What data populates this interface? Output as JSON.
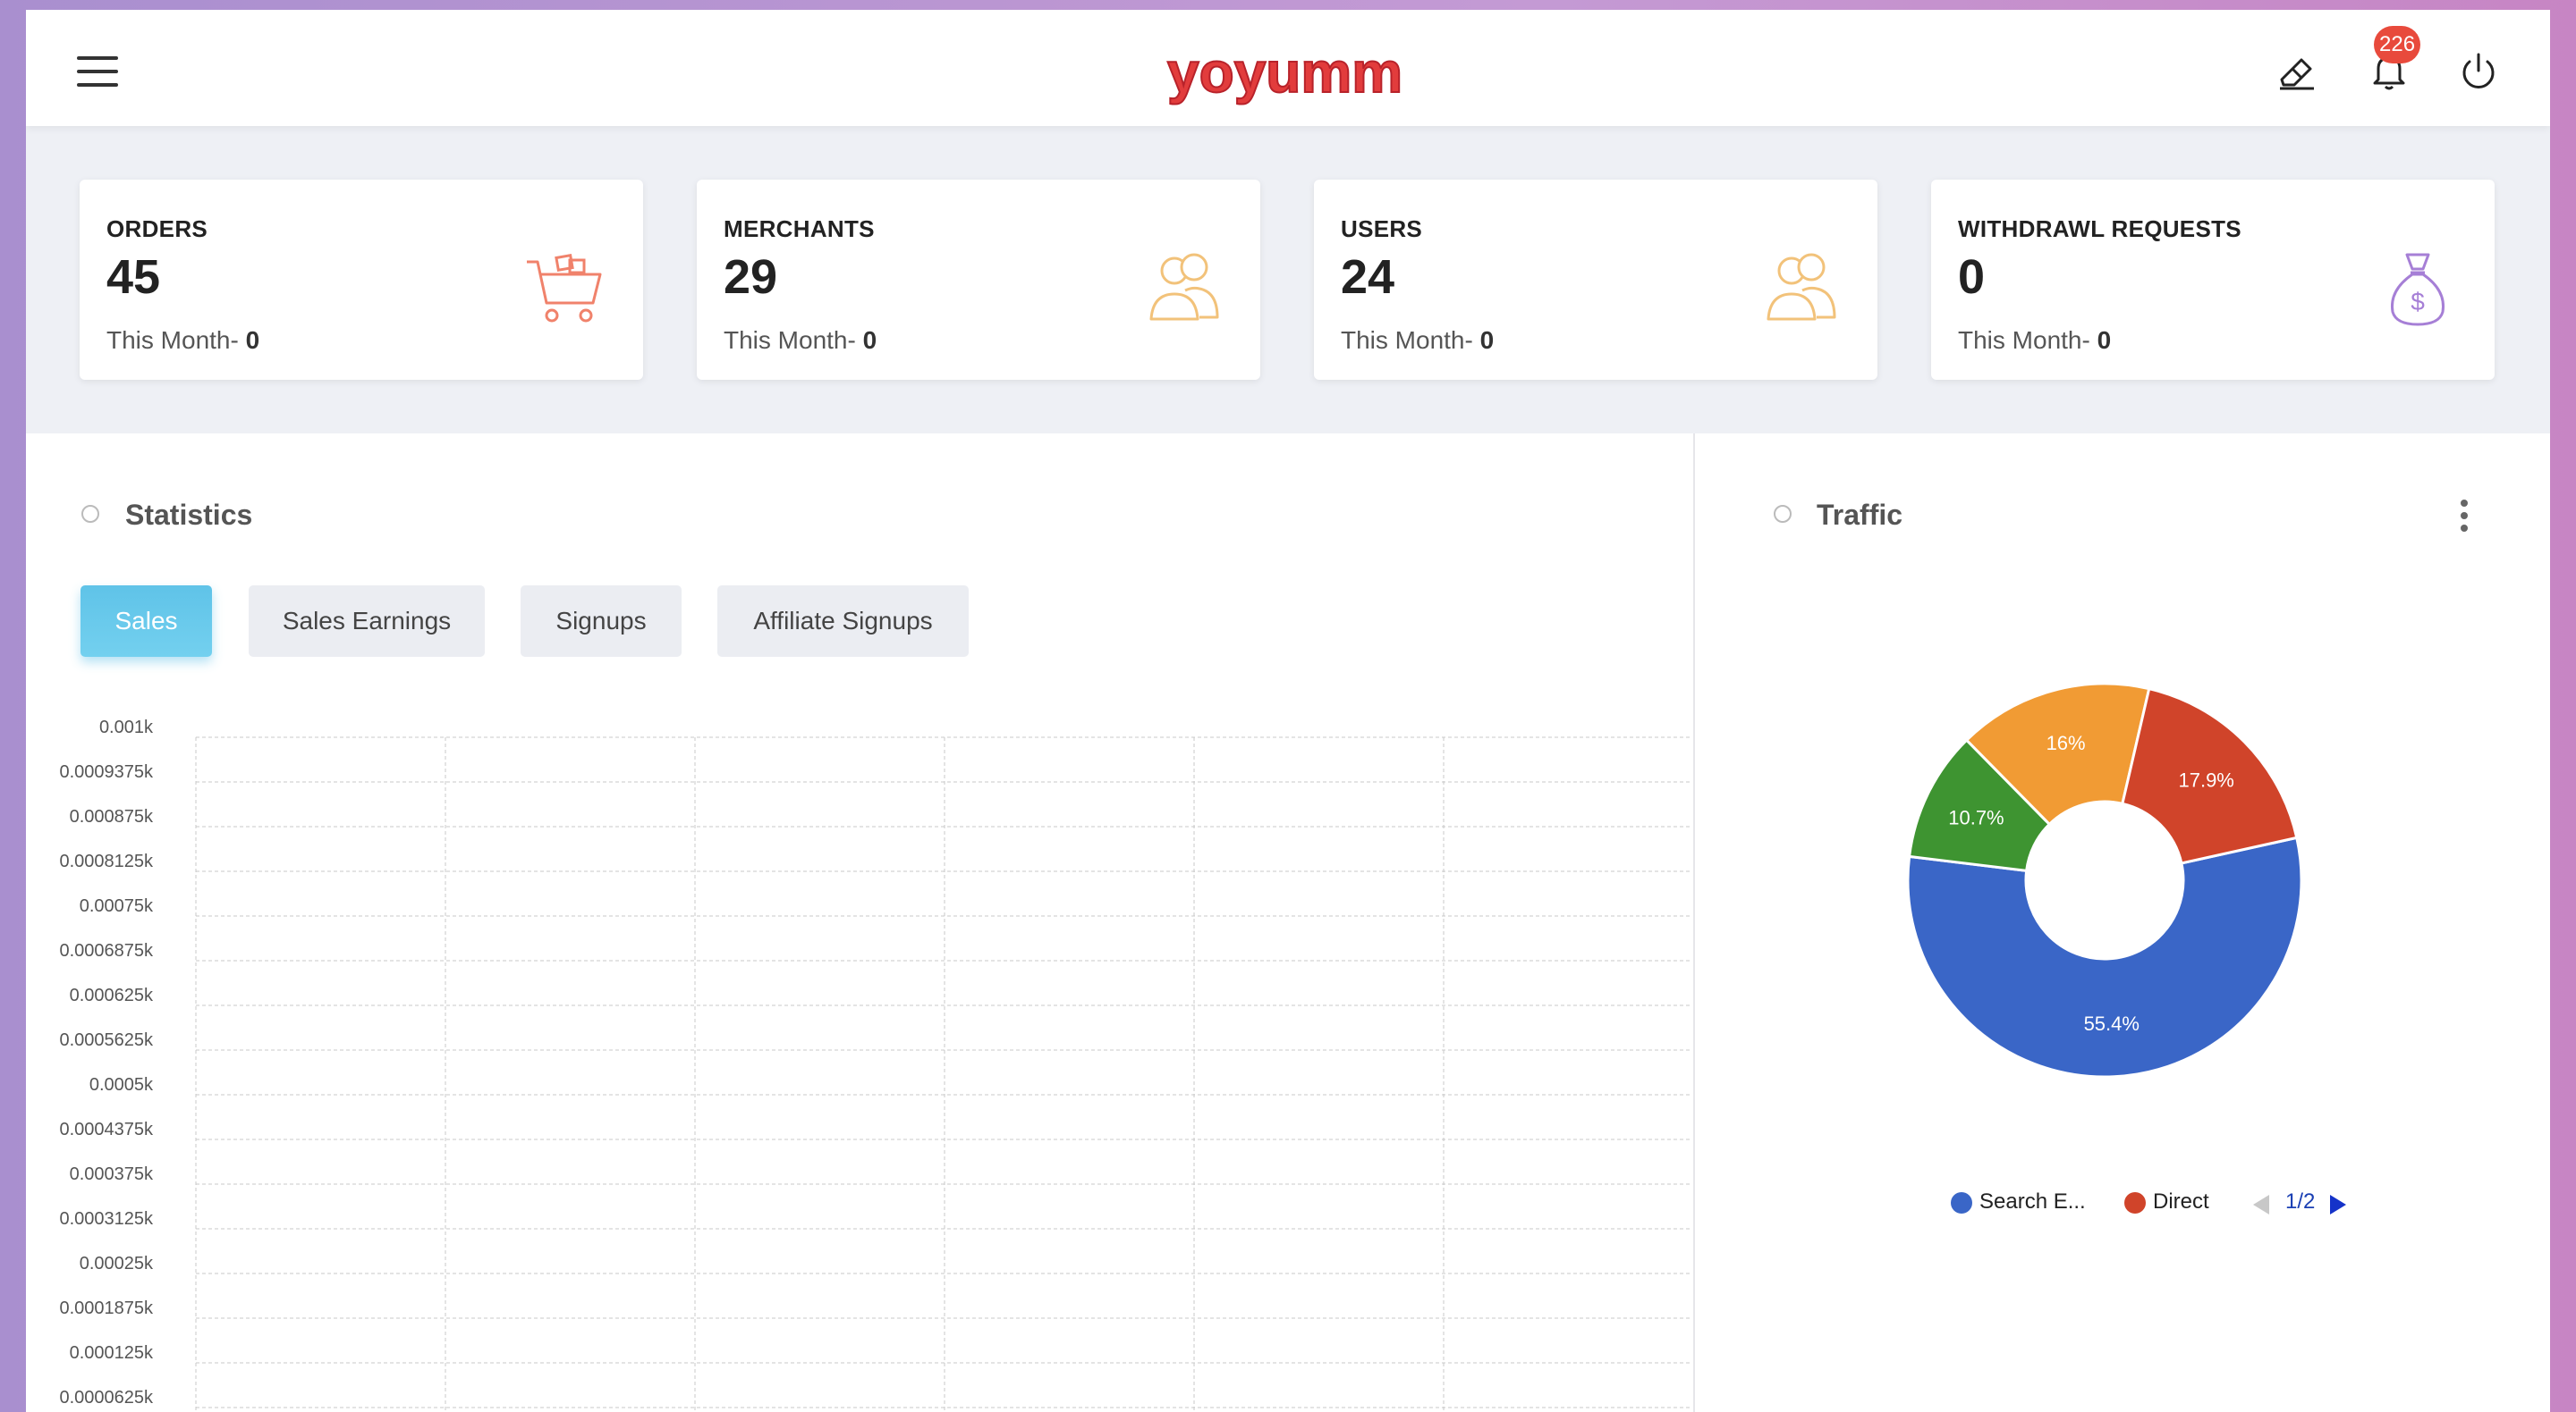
{
  "header": {
    "brand": "yoyumm",
    "notification_count": "226"
  },
  "stats": [
    {
      "title": "ORDERS",
      "value": "45",
      "sub_label": "This Month- ",
      "sub_value": "0",
      "icon": "cart-icon",
      "icon_color": "#f0826b"
    },
    {
      "title": "MERCHANTS",
      "value": "29",
      "sub_label": "This Month- ",
      "sub_value": "0",
      "icon": "users-icon",
      "icon_color": "#f2c27a"
    },
    {
      "title": "USERS",
      "value": "24",
      "sub_label": "This Month- ",
      "sub_value": "0",
      "icon": "users-icon",
      "icon_color": "#f2c27a"
    },
    {
      "title": "WITHDRAWL REQUESTS",
      "value": "0",
      "sub_label": "This Month- ",
      "sub_value": "0",
      "icon": "money-bag-icon",
      "icon_color": "#a67fd6"
    }
  ],
  "statistics": {
    "title": "Statistics",
    "tabs": [
      {
        "label": "Sales",
        "active": true
      },
      {
        "label": "Sales Earnings",
        "active": false
      },
      {
        "label": "Signups",
        "active": false
      },
      {
        "label": "Affiliate Signups",
        "active": false
      }
    ]
  },
  "traffic": {
    "title": "Traffic",
    "legend": [
      {
        "label": "Search E...",
        "color": "#3a66c7"
      },
      {
        "label": "Direct",
        "color": "#d0442a"
      }
    ],
    "page": "1/2"
  },
  "chart_data": [
    {
      "type": "line",
      "title": "",
      "y_tick_labels": [
        "0.001k",
        "0.0009375k",
        "0.000875k",
        "0.0008125k",
        "0.00075k",
        "0.0006875k",
        "0.000625k",
        "0.0005625k",
        "0.0005k",
        "0.0004375k",
        "0.000375k",
        "0.0003125k",
        "0.00025k",
        "0.0001875k",
        "0.000125k",
        "0.0000625k"
      ],
      "series": [],
      "grid": true
    },
    {
      "type": "pie",
      "title": "",
      "slices": [
        {
          "label": "Search E...",
          "value": 55.4,
          "display": "55.4%",
          "color": "#3a66c7"
        },
        {
          "label": "",
          "value": 10.7,
          "display": "10.7%",
          "color": "#3e9431"
        },
        {
          "label": "",
          "value": 16.0,
          "display": "16%",
          "color": "#f19b34"
        },
        {
          "label": "Direct",
          "value": 17.9,
          "display": "17.9%",
          "color": "#d0442a"
        }
      ],
      "donut": true,
      "legend_position": "bottom"
    }
  ]
}
